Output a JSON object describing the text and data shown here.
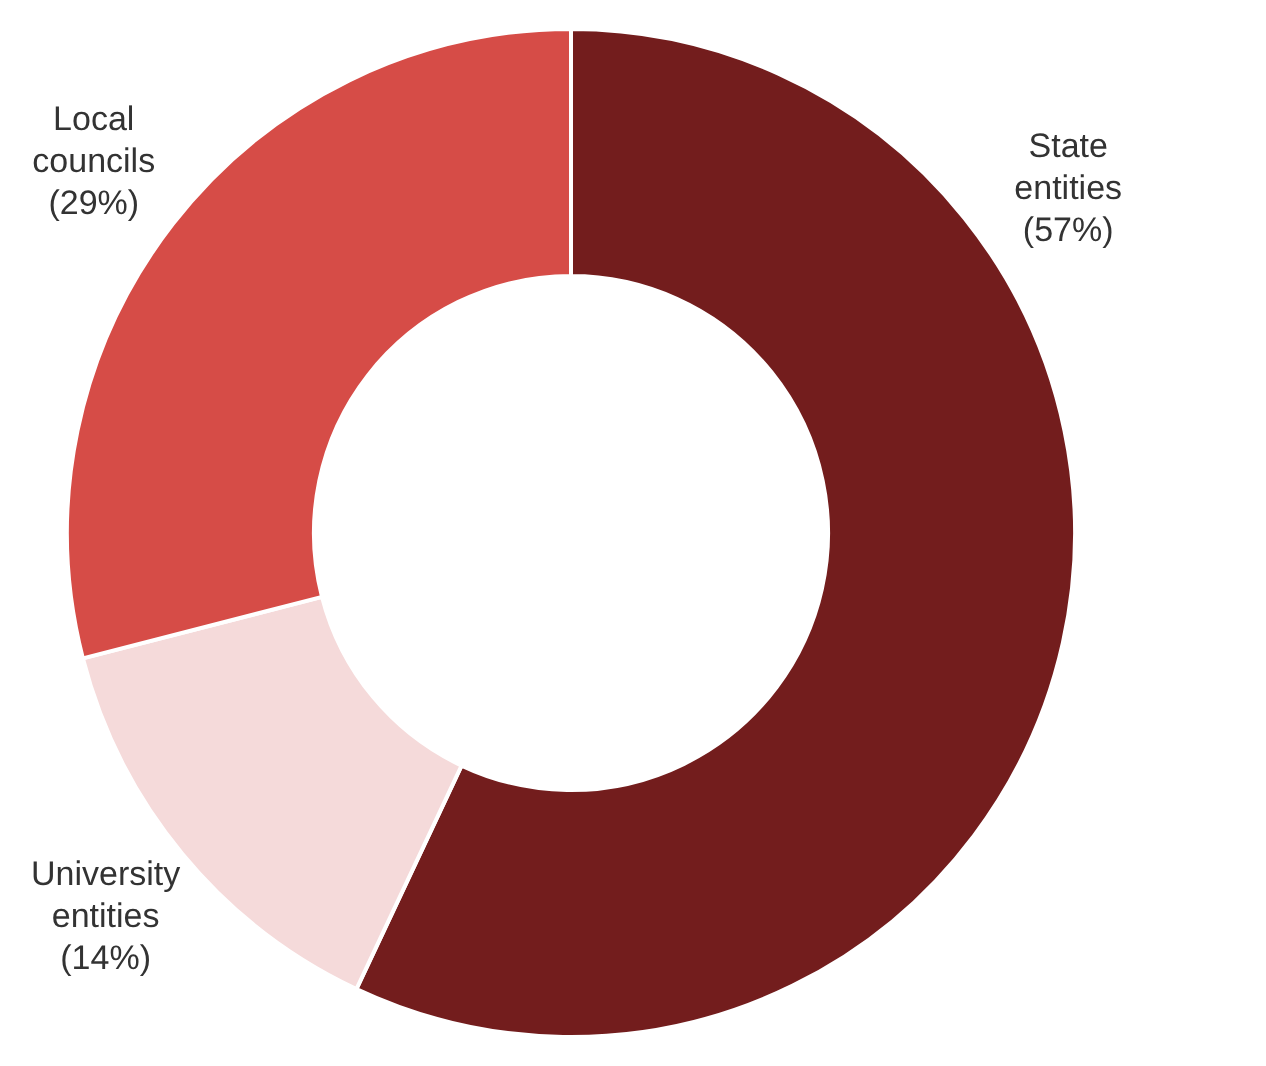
{
  "chart_data": {
    "type": "donut",
    "categories": [
      "State entities",
      "University entities",
      "Local councils"
    ],
    "values": [
      57,
      14,
      29
    ],
    "colors": [
      "#731d1d",
      "#f5dada",
      "#d64c47"
    ],
    "value_labels": [
      "(57%)",
      "(14%)",
      "(29%)"
    ],
    "legend": false
  }
}
